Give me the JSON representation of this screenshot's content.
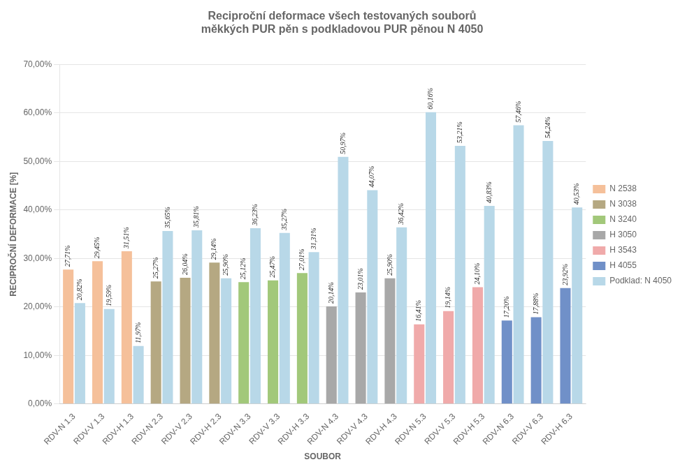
{
  "chart_data": {
    "type": "bar",
    "title": "Reciproční deformace všech testovaných souborů\nměkkých PUR pěn s podkladovou PUR pěnou N 4050",
    "xlabel": "SOUBOR",
    "ylabel": "RECIPROČNÍ DEFORMACE [%]",
    "categories": [
      "RDV-N 1.3",
      "RDV-V 1.3",
      "RDV-H 1.3",
      "RDV-N 2.3",
      "RDV-V 2.3",
      "RDV-H 2.3",
      "RDV-N 3.3",
      "RDV-V 3.3",
      "RDV-H 3.3",
      "RDV-N 4.3",
      "RDV-V 4.3",
      "RDV-H 4.3",
      "RDV-N 5.3",
      "RDV-V 5.3",
      "RDV-H 5.3",
      "RDV-N 6.3",
      "RDV-V 6.3",
      "RDV-H 6.3"
    ],
    "series": [
      {
        "name": "N 2538",
        "color": "#F5C09A",
        "values": [
          0.2771,
          0.2945,
          0.3151,
          null,
          null,
          null,
          null,
          null,
          null,
          null,
          null,
          null,
          null,
          null,
          null,
          null,
          null,
          null
        ],
        "value_labels": [
          "27,71%",
          "29,45%",
          "31,51%",
          null,
          null,
          null,
          null,
          null,
          null,
          null,
          null,
          null,
          null,
          null,
          null,
          null,
          null,
          null
        ]
      },
      {
        "name": "N 3038",
        "color": "#B5A882",
        "values": [
          null,
          null,
          null,
          0.2527,
          0.2604,
          0.2914,
          null,
          null,
          null,
          null,
          null,
          null,
          null,
          null,
          null,
          null,
          null,
          null
        ],
        "value_labels": [
          null,
          null,
          null,
          "25,27%",
          "26,04%",
          "29,14%",
          null,
          null,
          null,
          null,
          null,
          null,
          null,
          null,
          null,
          null,
          null,
          null
        ]
      },
      {
        "name": "N 3240",
        "color": "#A2C87A",
        "values": [
          null,
          null,
          null,
          null,
          null,
          null,
          0.2512,
          0.2547,
          0.2701,
          null,
          null,
          null,
          null,
          null,
          null,
          null,
          null,
          null
        ],
        "value_labels": [
          null,
          null,
          null,
          null,
          null,
          null,
          "25,12%",
          "25,47%",
          "27,01%",
          null,
          null,
          null,
          null,
          null,
          null,
          null,
          null,
          null
        ]
      },
      {
        "name": "H 3050",
        "color": "#A8A8A8",
        "values": [
          null,
          null,
          null,
          null,
          null,
          null,
          null,
          null,
          null,
          0.2014,
          0.2301,
          0.259,
          null,
          null,
          null,
          null,
          null,
          null
        ],
        "value_labels": [
          null,
          null,
          null,
          null,
          null,
          null,
          null,
          null,
          null,
          "20,14%",
          "23,01%",
          "25,90%",
          null,
          null,
          null,
          null,
          null,
          null
        ]
      },
      {
        "name": "H 3543",
        "color": "#F0AAAA",
        "values": [
          null,
          null,
          null,
          null,
          null,
          null,
          null,
          null,
          null,
          null,
          null,
          null,
          0.1641,
          0.1914,
          0.241,
          null,
          null,
          null
        ],
        "value_labels": [
          null,
          null,
          null,
          null,
          null,
          null,
          null,
          null,
          null,
          null,
          null,
          null,
          "16,41%",
          "19,14%",
          "24,10%",
          null,
          null,
          null
        ]
      },
      {
        "name": "H 4055",
        "color": "#7090C8",
        "values": [
          null,
          null,
          null,
          null,
          null,
          null,
          null,
          null,
          null,
          null,
          null,
          null,
          null,
          null,
          null,
          0.172,
          0.1788,
          0.2392
        ],
        "value_labels": [
          null,
          null,
          null,
          null,
          null,
          null,
          null,
          null,
          null,
          null,
          null,
          null,
          null,
          null,
          null,
          "17,20%",
          "17,88%",
          "23,92%"
        ]
      },
      {
        "name": "Podklad: N 4050",
        "color": "#B8D8E8",
        "values": [
          0.2082,
          0.1959,
          0.1197,
          0.3565,
          0.3581,
          0.259,
          0.3623,
          0.3527,
          0.3131,
          0.5097,
          0.4407,
          0.3642,
          0.6016,
          0.5321,
          0.4083,
          0.5746,
          0.5424,
          0.4053
        ],
        "value_labels": [
          "20,82%",
          "19,59%",
          "11,97%",
          "35,65%",
          "35,81%",
          "25,90%",
          "36,23%",
          "35,27%",
          "31,31%",
          "50,97%",
          "44,07%",
          "36,42%",
          "60,16%",
          "53,21%",
          "40,83%",
          "57,46%",
          "54,24%",
          "40,53%"
        ]
      }
    ],
    "ylim": [
      0,
      0.7
    ],
    "yticks": [
      {
        "value": 0.0,
        "label": "0,00%"
      },
      {
        "value": 0.1,
        "label": "10,00%"
      },
      {
        "value": 0.2,
        "label": "20,00%"
      },
      {
        "value": 0.3,
        "label": "30,00%"
      },
      {
        "value": 0.4,
        "label": "40,00%"
      },
      {
        "value": 0.5,
        "label": "50,00%"
      },
      {
        "value": 0.6,
        "label": "60,00%"
      },
      {
        "value": 0.7,
        "label": "70,00%"
      }
    ],
    "grid": true,
    "legend": "right",
    "data_labels": true
  }
}
